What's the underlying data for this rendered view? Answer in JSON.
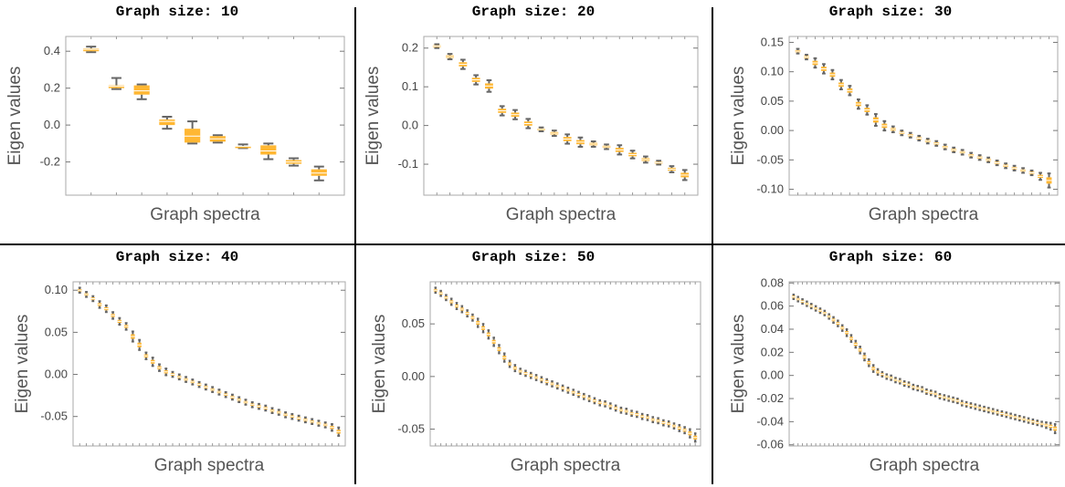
{
  "colors": {
    "box": "#ffb733",
    "whisker": "#666666",
    "frame": "#aaaaaa",
    "divider": "#000000"
  },
  "chart_data": [
    {
      "type": "box",
      "title": "Graph size: 10",
      "xlabel": "Graph spectra",
      "ylabel": "Eigen values",
      "ylim": [
        -0.38,
        0.48
      ],
      "yticks": [
        {
          "v": 0.4,
          "label": "0.4"
        },
        {
          "v": 0.2,
          "label": "0.2"
        },
        {
          "v": 0.0,
          "label": "0.0"
        },
        {
          "v": -0.2,
          "label": "-0.2"
        }
      ],
      "n": 10,
      "min": [
        0.395,
        0.195,
        0.14,
        -0.02,
        -0.1,
        -0.095,
        -0.125,
        -0.185,
        -0.22,
        -0.3
      ],
      "q1": [
        0.4,
        0.2,
        0.165,
        0.0,
        -0.095,
        -0.09,
        -0.115,
        -0.16,
        -0.21,
        -0.275
      ],
      "median": [
        0.41,
        0.21,
        0.185,
        0.02,
        -0.06,
        -0.075,
        -0.115,
        -0.14,
        -0.2,
        -0.26
      ],
      "q3": [
        0.415,
        0.215,
        0.215,
        0.03,
        -0.02,
        -0.06,
        -0.115,
        -0.11,
        -0.19,
        -0.24
      ],
      "max": [
        0.425,
        0.255,
        0.22,
        0.045,
        0.02,
        -0.055,
        -0.105,
        -0.1,
        -0.18,
        -0.225
      ]
    },
    {
      "type": "box",
      "title": "Graph size: 20",
      "xlabel": "Graph spectra",
      "ylabel": "Eigen values",
      "ylim": [
        -0.18,
        0.23
      ],
      "yticks": [
        {
          "v": 0.2,
          "label": "0.2"
        },
        {
          "v": 0.1,
          "label": "0.1"
        },
        {
          "v": 0.0,
          "label": "0.0"
        },
        {
          "v": -0.1,
          "label": "-0.1"
        }
      ],
      "n": 20,
      "median": [
        0.205,
        0.178,
        0.158,
        0.118,
        0.102,
        0.038,
        0.028,
        0.005,
        -0.01,
        -0.02,
        -0.035,
        -0.043,
        -0.048,
        -0.055,
        -0.063,
        -0.075,
        -0.088,
        -0.096,
        -0.113,
        -0.128
      ],
      "spread": [
        0.005,
        0.007,
        0.012,
        0.012,
        0.015,
        0.012,
        0.012,
        0.012,
        0.005,
        0.007,
        0.012,
        0.012,
        0.007,
        0.006,
        0.012,
        0.01,
        0.008,
        0.005,
        0.008,
        0.013
      ]
    },
    {
      "type": "box",
      "title": "Graph size: 30",
      "xlabel": "Graph spectra",
      "ylabel": "Eigen values",
      "ylim": [
        -0.11,
        0.16
      ],
      "yticks": [
        {
          "v": 0.15,
          "label": "0.15"
        },
        {
          "v": 0.1,
          "label": "0.10"
        },
        {
          "v": 0.05,
          "label": "0.05"
        },
        {
          "v": 0.0,
          "label": "0.00"
        },
        {
          "v": -0.05,
          "label": "-0.05"
        },
        {
          "v": -0.1,
          "label": "-0.10"
        }
      ],
      "n": 30,
      "median": [
        0.135,
        0.125,
        0.115,
        0.105,
        0.095,
        0.078,
        0.068,
        0.045,
        0.035,
        0.018,
        0.008,
        0.002,
        -0.004,
        -0.008,
        -0.013,
        -0.018,
        -0.022,
        -0.028,
        -0.033,
        -0.037,
        -0.042,
        -0.046,
        -0.05,
        -0.055,
        -0.06,
        -0.064,
        -0.068,
        -0.072,
        -0.078,
        -0.085
      ],
      "spread": [
        0.004,
        0.004,
        0.008,
        0.008,
        0.008,
        0.008,
        0.008,
        0.008,
        0.008,
        0.01,
        0.008,
        0.005,
        0.004,
        0.004,
        0.004,
        0.004,
        0.004,
        0.004,
        0.004,
        0.004,
        0.004,
        0.004,
        0.004,
        0.004,
        0.004,
        0.004,
        0.004,
        0.004,
        0.006,
        0.012
      ]
    },
    {
      "type": "box",
      "title": "Graph size: 40",
      "xlabel": "Graph spectra",
      "ylabel": "Eigen values",
      "ylim": [
        -0.085,
        0.11
      ],
      "yticks": [
        {
          "v": 0.1,
          "label": "0.10"
        },
        {
          "v": 0.05,
          "label": "0.05"
        },
        {
          "v": 0.0,
          "label": "0.00"
        },
        {
          "v": -0.05,
          "label": "-0.05"
        }
      ],
      "n": 40,
      "median": [
        0.1,
        0.095,
        0.09,
        0.083,
        0.078,
        0.07,
        0.063,
        0.057,
        0.045,
        0.035,
        0.022,
        0.015,
        0.008,
        0.003,
        0.0,
        -0.003,
        -0.006,
        -0.009,
        -0.012,
        -0.015,
        -0.018,
        -0.021,
        -0.024,
        -0.027,
        -0.03,
        -0.033,
        -0.036,
        -0.038,
        -0.04,
        -0.043,
        -0.045,
        -0.048,
        -0.05,
        -0.052,
        -0.054,
        -0.056,
        -0.058,
        -0.06,
        -0.063,
        -0.068
      ],
      "spread": [
        0.003,
        0.003,
        0.003,
        0.004,
        0.004,
        0.004,
        0.004,
        0.004,
        0.006,
        0.006,
        0.004,
        0.005,
        0.004,
        0.004,
        0.003,
        0.003,
        0.003,
        0.003,
        0.003,
        0.003,
        0.003,
        0.003,
        0.003,
        0.003,
        0.003,
        0.003,
        0.003,
        0.003,
        0.003,
        0.003,
        0.003,
        0.003,
        0.003,
        0.003,
        0.003,
        0.003,
        0.003,
        0.003,
        0.004,
        0.005
      ]
    },
    {
      "type": "box",
      "title": "Graph size: 50",
      "xlabel": "Graph spectra",
      "ylabel": "Eigen values",
      "ylim": [
        -0.066,
        0.09
      ],
      "yticks": [
        {
          "v": 0.05,
          "label": "0.05"
        },
        {
          "v": 0.0,
          "label": "0.00"
        },
        {
          "v": -0.05,
          "label": "-0.05"
        }
      ],
      "n": 50,
      "median": [
        0.082,
        0.079,
        0.075,
        0.071,
        0.067,
        0.064,
        0.06,
        0.056,
        0.051,
        0.046,
        0.04,
        0.033,
        0.026,
        0.018,
        0.012,
        0.008,
        0.005,
        0.003,
        0.001,
        -0.001,
        -0.003,
        -0.005,
        -0.007,
        -0.009,
        -0.011,
        -0.013,
        -0.015,
        -0.017,
        -0.019,
        -0.021,
        -0.023,
        -0.025,
        -0.026,
        -0.028,
        -0.03,
        -0.032,
        -0.033,
        -0.035,
        -0.036,
        -0.038,
        -0.039,
        -0.041,
        -0.042,
        -0.044,
        -0.045,
        -0.047,
        -0.049,
        -0.051,
        -0.054,
        -0.058
      ],
      "spread": [
        0.0025,
        0.0025,
        0.0025,
        0.003,
        0.003,
        0.003,
        0.003,
        0.003,
        0.004,
        0.004,
        0.004,
        0.004,
        0.004,
        0.004,
        0.003,
        0.003,
        0.0025,
        0.0025,
        0.0025,
        0.0025,
        0.0025,
        0.0025,
        0.0025,
        0.0025,
        0.0025,
        0.0025,
        0.0025,
        0.0025,
        0.0025,
        0.0025,
        0.0025,
        0.0025,
        0.0025,
        0.0025,
        0.0025,
        0.0025,
        0.0025,
        0.0025,
        0.0025,
        0.0025,
        0.0025,
        0.0025,
        0.0025,
        0.0025,
        0.0025,
        0.0025,
        0.003,
        0.003,
        0.004,
        0.004
      ]
    },
    {
      "type": "box",
      "title": "Graph size: 60",
      "xlabel": "Graph spectra",
      "ylabel": "Eigen values",
      "ylim": [
        -0.061,
        0.081
      ],
      "yticks": [
        {
          "v": 0.08,
          "label": "0.08"
        },
        {
          "v": 0.06,
          "label": "0.06"
        },
        {
          "v": 0.04,
          "label": "0.04"
        },
        {
          "v": 0.02,
          "label": "0.02"
        },
        {
          "v": 0.0,
          "label": "0.00"
        },
        {
          "v": -0.02,
          "label": "-0.02"
        },
        {
          "v": -0.04,
          "label": "-0.04"
        },
        {
          "v": -0.06,
          "label": "-0.06"
        }
      ],
      "n": 60,
      "median": [
        0.068,
        0.066,
        0.064,
        0.062,
        0.06,
        0.058,
        0.056,
        0.054,
        0.051,
        0.048,
        0.045,
        0.041,
        0.037,
        0.032,
        0.027,
        0.022,
        0.016,
        0.011,
        0.006,
        0.003,
        0.001,
        -0.001,
        -0.002,
        -0.004,
        -0.005,
        -0.007,
        -0.008,
        -0.01,
        -0.011,
        -0.012,
        -0.014,
        -0.015,
        -0.016,
        -0.018,
        -0.019,
        -0.02,
        -0.021,
        -0.022,
        -0.024,
        -0.025,
        -0.026,
        -0.027,
        -0.028,
        -0.029,
        -0.03,
        -0.031,
        -0.032,
        -0.033,
        -0.034,
        -0.035,
        -0.036,
        -0.037,
        -0.038,
        -0.039,
        -0.04,
        -0.041,
        -0.042,
        -0.043,
        -0.044,
        -0.046
      ],
      "spread": [
        0.002,
        0.002,
        0.002,
        0.002,
        0.002,
        0.002,
        0.002,
        0.002,
        0.002,
        0.0025,
        0.0025,
        0.0025,
        0.003,
        0.003,
        0.003,
        0.003,
        0.003,
        0.003,
        0.003,
        0.0025,
        0.002,
        0.002,
        0.002,
        0.002,
        0.002,
        0.002,
        0.002,
        0.002,
        0.002,
        0.002,
        0.002,
        0.002,
        0.002,
        0.002,
        0.002,
        0.002,
        0.002,
        0.002,
        0.002,
        0.002,
        0.002,
        0.002,
        0.002,
        0.002,
        0.002,
        0.002,
        0.002,
        0.002,
        0.002,
        0.002,
        0.002,
        0.002,
        0.002,
        0.002,
        0.002,
        0.002,
        0.002,
        0.0025,
        0.003,
        0.004
      ]
    }
  ]
}
